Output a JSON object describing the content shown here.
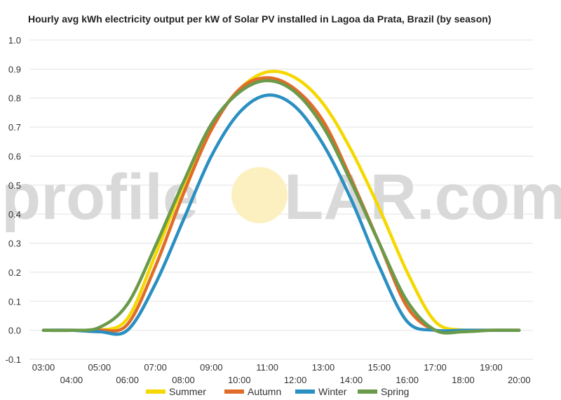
{
  "chart_data": {
    "type": "line",
    "title": "Hourly avg kWh electricity output per kW of Solar PV installed in Lagoa da Prata, Brazil (by season)",
    "xlabel": "",
    "ylabel": "",
    "ylim": [
      -0.1,
      1.0
    ],
    "yticks": [
      "-0.1",
      "0.0",
      "0.1",
      "0.2",
      "0.3",
      "0.4",
      "0.5",
      "0.6",
      "0.7",
      "0.8",
      "0.9",
      "1.0"
    ],
    "x": [
      "03:00",
      "04:00",
      "05:00",
      "06:00",
      "07:00",
      "08:00",
      "09:00",
      "10:00",
      "11:00",
      "12:00",
      "13:00",
      "14:00",
      "15:00",
      "16:00",
      "17:00",
      "18:00",
      "19:00",
      "20:00"
    ],
    "grid": true,
    "legend_position": "bottom",
    "series": [
      {
        "name": "Summer",
        "color": "#f5d800",
        "values": [
          0.0,
          0.0,
          0.0,
          0.04,
          0.26,
          0.5,
          0.7,
          0.83,
          0.89,
          0.87,
          0.78,
          0.62,
          0.42,
          0.2,
          0.03,
          0.0,
          0.0,
          0.0
        ]
      },
      {
        "name": "Autumn",
        "color": "#e06c2a",
        "values": [
          0.0,
          0.0,
          0.0,
          0.02,
          0.22,
          0.47,
          0.69,
          0.83,
          0.87,
          0.83,
          0.72,
          0.52,
          0.3,
          0.08,
          0.0,
          0.0,
          0.0,
          0.0
        ]
      },
      {
        "name": "Winter",
        "color": "#2a8fc1",
        "values": [
          0.0,
          0.0,
          -0.005,
          0.0,
          0.16,
          0.38,
          0.6,
          0.75,
          0.81,
          0.77,
          0.64,
          0.45,
          0.22,
          0.03,
          0.0,
          0.0,
          0.0,
          0.0
        ]
      },
      {
        "name": "Spring",
        "color": "#6a9a4a",
        "values": [
          0.0,
          0.0,
          0.01,
          0.09,
          0.29,
          0.51,
          0.71,
          0.82,
          0.86,
          0.82,
          0.7,
          0.51,
          0.3,
          0.1,
          0.0,
          -0.005,
          0.0,
          0.0
        ]
      }
    ]
  },
  "watermark": {
    "left": "profile",
    "right": "LAR.com",
    "sun_color": "#fdf0c0"
  }
}
